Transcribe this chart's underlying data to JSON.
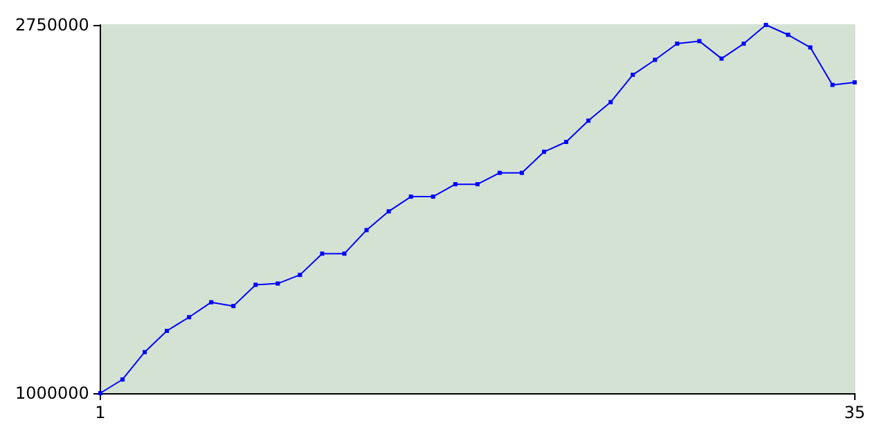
{
  "chart_data": {
    "type": "line",
    "x": [
      1,
      2,
      3,
      4,
      5,
      6,
      7,
      8,
      9,
      10,
      11,
      12,
      13,
      14,
      15,
      16,
      17,
      18,
      19,
      20,
      21,
      22,
      23,
      24,
      25,
      26,
      27,
      28,
      29,
      30,
      31,
      32,
      33,
      34,
      35
    ],
    "series": [
      {
        "color": "#0000ff",
        "values": [
          1000000,
          1065000,
          1195000,
          1296000,
          1361000,
          1432000,
          1414000,
          1515000,
          1521000,
          1562000,
          1663000,
          1663000,
          1775000,
          1864000,
          1934000,
          1934000,
          1993000,
          1993000,
          2047000,
          2047000,
          2147000,
          2194000,
          2295000,
          2383000,
          2513000,
          2584000,
          2661000,
          2673000,
          2590000,
          2661000,
          2750000,
          2703000,
          2643000,
          2465000,
          2477000
        ]
      }
    ],
    "xlim": [
      1,
      35
    ],
    "xticks": [
      1,
      35
    ],
    "ylim": [
      1000000,
      2750000
    ],
    "yticks": [
      1000000,
      2750000
    ],
    "grid": false,
    "marker": "square",
    "line_style": "solid"
  }
}
